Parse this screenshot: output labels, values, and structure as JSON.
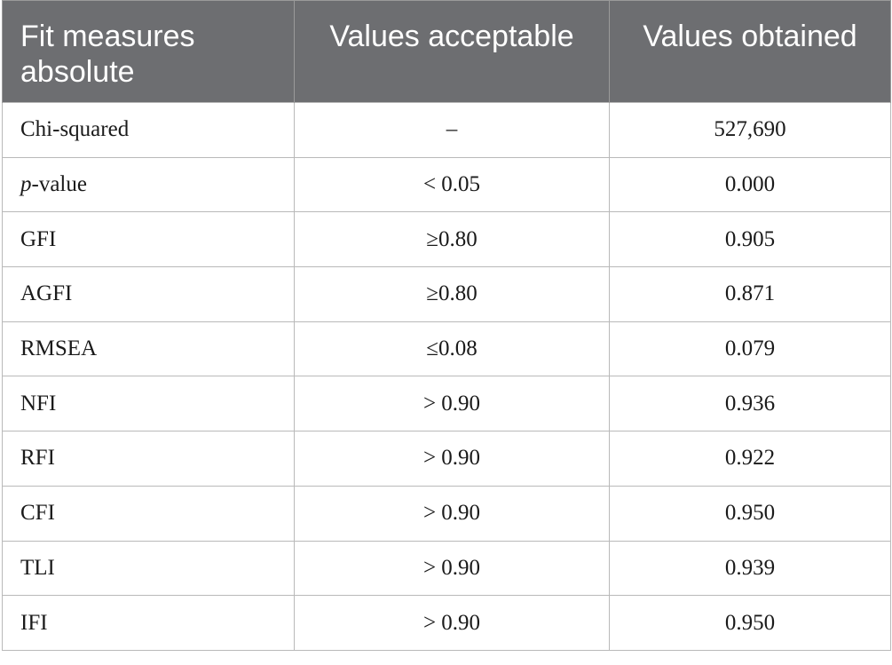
{
  "table": {
    "headers": {
      "measure": "Fit measures absolute",
      "acceptable": "Values acceptable",
      "obtained": "Values obtained"
    },
    "rows": [
      {
        "measure_prefix": "",
        "measure": "Chi-squared",
        "acceptable": "–",
        "obtained": "527,690"
      },
      {
        "measure_prefix": "p",
        "measure": "-value",
        "acceptable": "< 0.05",
        "obtained": "0.000"
      },
      {
        "measure_prefix": "",
        "measure": "GFI",
        "acceptable": "≥0.80",
        "obtained": "0.905"
      },
      {
        "measure_prefix": "",
        "measure": "AGFI",
        "acceptable": "≥0.80",
        "obtained": "0.871"
      },
      {
        "measure_prefix": "",
        "measure": "RMSEA",
        "acceptable": "≤0.08",
        "obtained": "0.079"
      },
      {
        "measure_prefix": "",
        "measure": "NFI",
        "acceptable": "> 0.90",
        "obtained": "0.936"
      },
      {
        "measure_prefix": "",
        "measure": "RFI",
        "acceptable": "> 0.90",
        "obtained": "0.922"
      },
      {
        "measure_prefix": "",
        "measure": "CFI",
        "acceptable": "> 0.90",
        "obtained": "0.950"
      },
      {
        "measure_prefix": "",
        "measure": "TLI",
        "acceptable": "> 0.90",
        "obtained": "0.939"
      },
      {
        "measure_prefix": "",
        "measure": "IFI",
        "acceptable": "> 0.90",
        "obtained": "0.950"
      }
    ]
  },
  "colors": {
    "header_bg": "#6d6e71",
    "header_text": "#ffffff",
    "border": "#b9b9b9",
    "body_text": "#1a1a1a"
  }
}
